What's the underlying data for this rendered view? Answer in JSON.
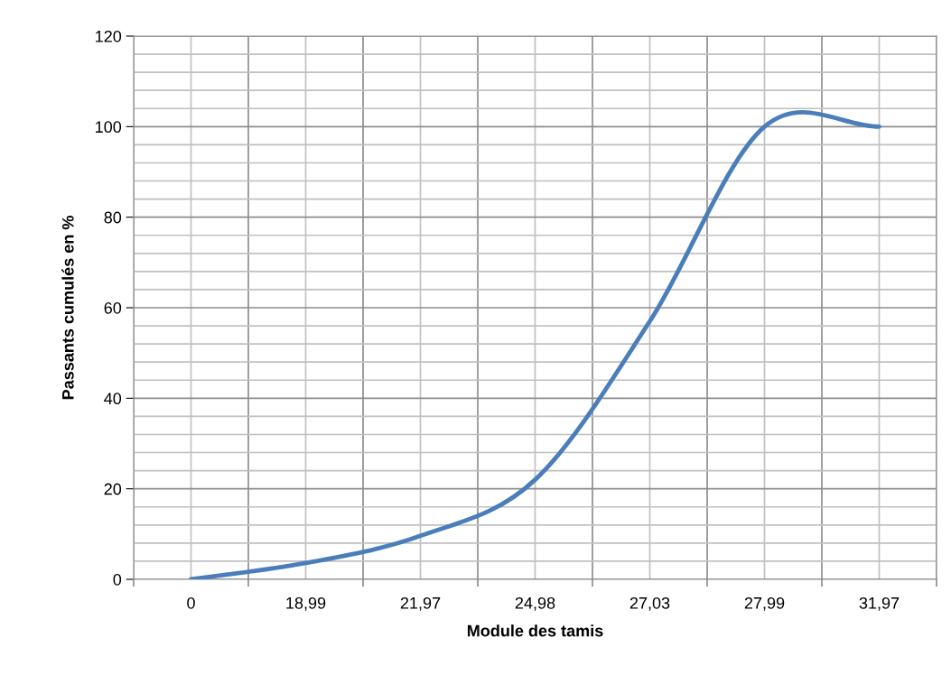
{
  "chart_data": {
    "type": "line",
    "xlabel": "Module des tamis",
    "ylabel": "Passants cumulés en %",
    "categories": [
      "0",
      "18,99",
      "21,97",
      "24,98",
      "27,03",
      "27,99",
      "31,97"
    ],
    "series": [
      {
        "color": "#4a7ebb",
        "values": [
          0,
          3.6,
          9.6,
          22,
          57,
          100,
          100
        ]
      }
    ],
    "ylim": [
      0,
      120
    ],
    "yticks": [
      0,
      20,
      40,
      60,
      80,
      100,
      120
    ],
    "grid": true,
    "marker": "none",
    "line_style": "solid"
  }
}
